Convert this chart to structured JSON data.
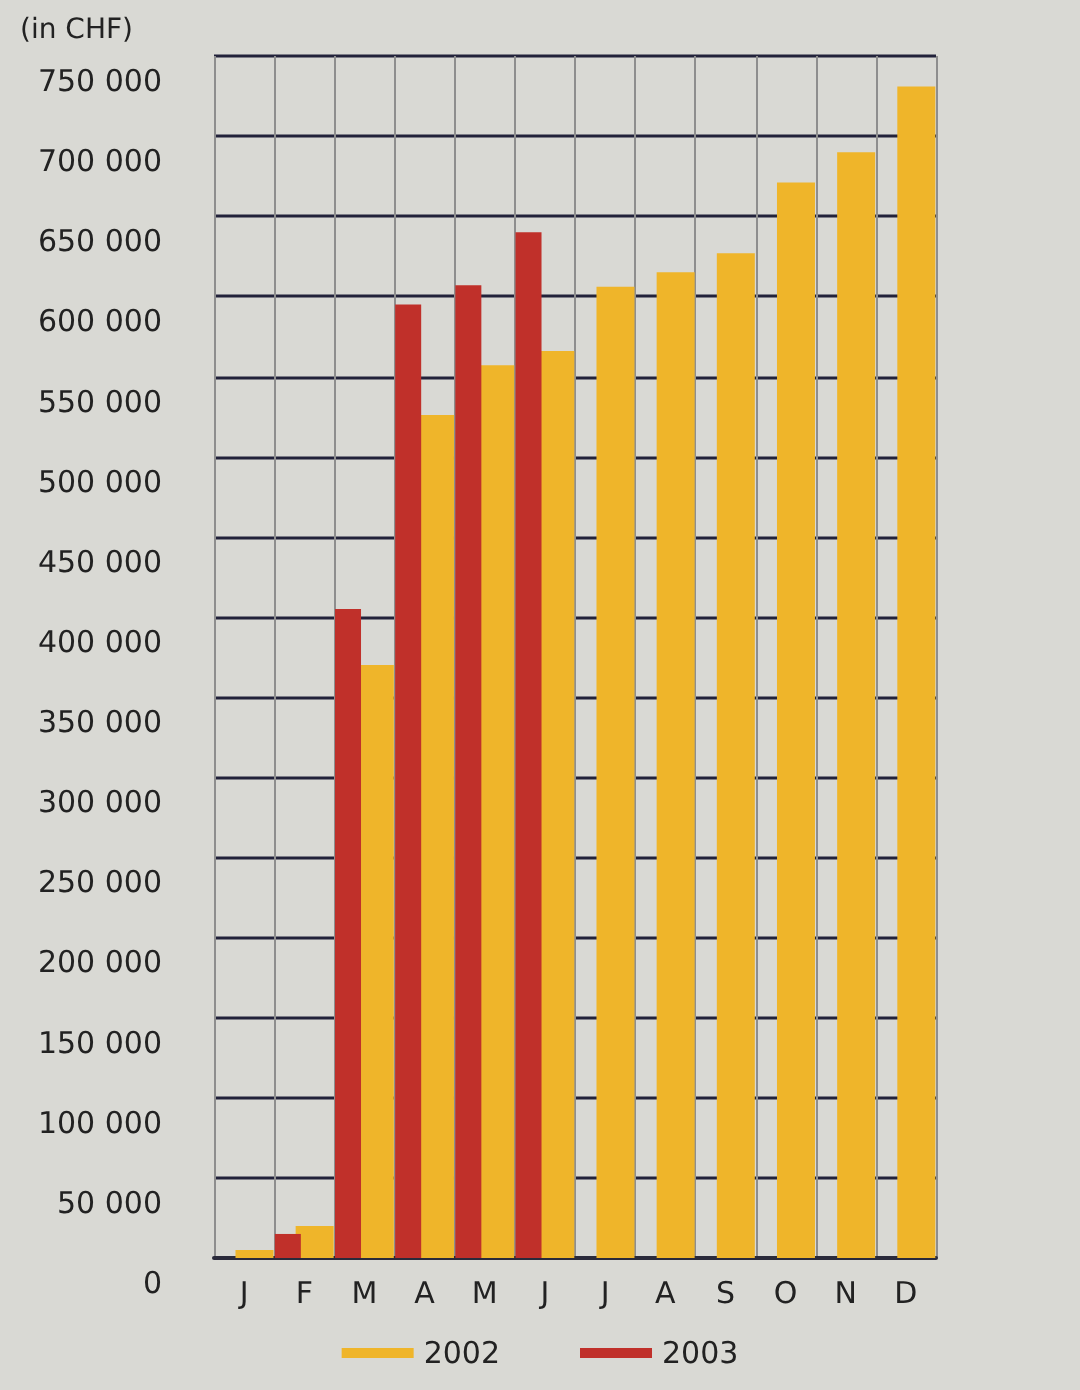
{
  "chart_data": {
    "type": "bar",
    "ylabel": "(in CHF)",
    "categories": [
      "J",
      "F",
      "M",
      "A",
      "M",
      "J",
      "J",
      "A",
      "S",
      "O",
      "N",
      "D"
    ],
    "series": [
      {
        "name": "2002",
        "color": "#efb52a",
        "values": [
          5000,
          20000,
          370000,
          526000,
          557000,
          566000,
          606000,
          615000,
          627000,
          671000,
          690000,
          731000
        ]
      },
      {
        "name": "2003",
        "color": "#c0302a",
        "values": [
          null,
          15000,
          405000,
          595000,
          607000,
          640000,
          null,
          null,
          null,
          null,
          null,
          null
        ]
      }
    ],
    "ylim": [
      0,
      750000
    ],
    "yticks": [
      {
        "value": 0,
        "label": "0"
      },
      {
        "value": 50000,
        "label": "50 000"
      },
      {
        "value": 100000,
        "label": "100 000"
      },
      {
        "value": 150000,
        "label": "150 000"
      },
      {
        "value": 200000,
        "label": "200 000"
      },
      {
        "value": 250000,
        "label": "250 000"
      },
      {
        "value": 300000,
        "label": "300 000"
      },
      {
        "value": 350000,
        "label": "350 000"
      },
      {
        "value": 400000,
        "label": "400 000"
      },
      {
        "value": 450000,
        "label": "450 000"
      },
      {
        "value": 500000,
        "label": "500 000"
      },
      {
        "value": 550000,
        "label": "550 000"
      },
      {
        "value": 600000,
        "label": "600 000"
      },
      {
        "value": 650000,
        "label": "650 000"
      },
      {
        "value": 700000,
        "label": "700 000"
      },
      {
        "value": 750000,
        "label": "750 000"
      }
    ],
    "grid": true,
    "legend": "bottom"
  }
}
